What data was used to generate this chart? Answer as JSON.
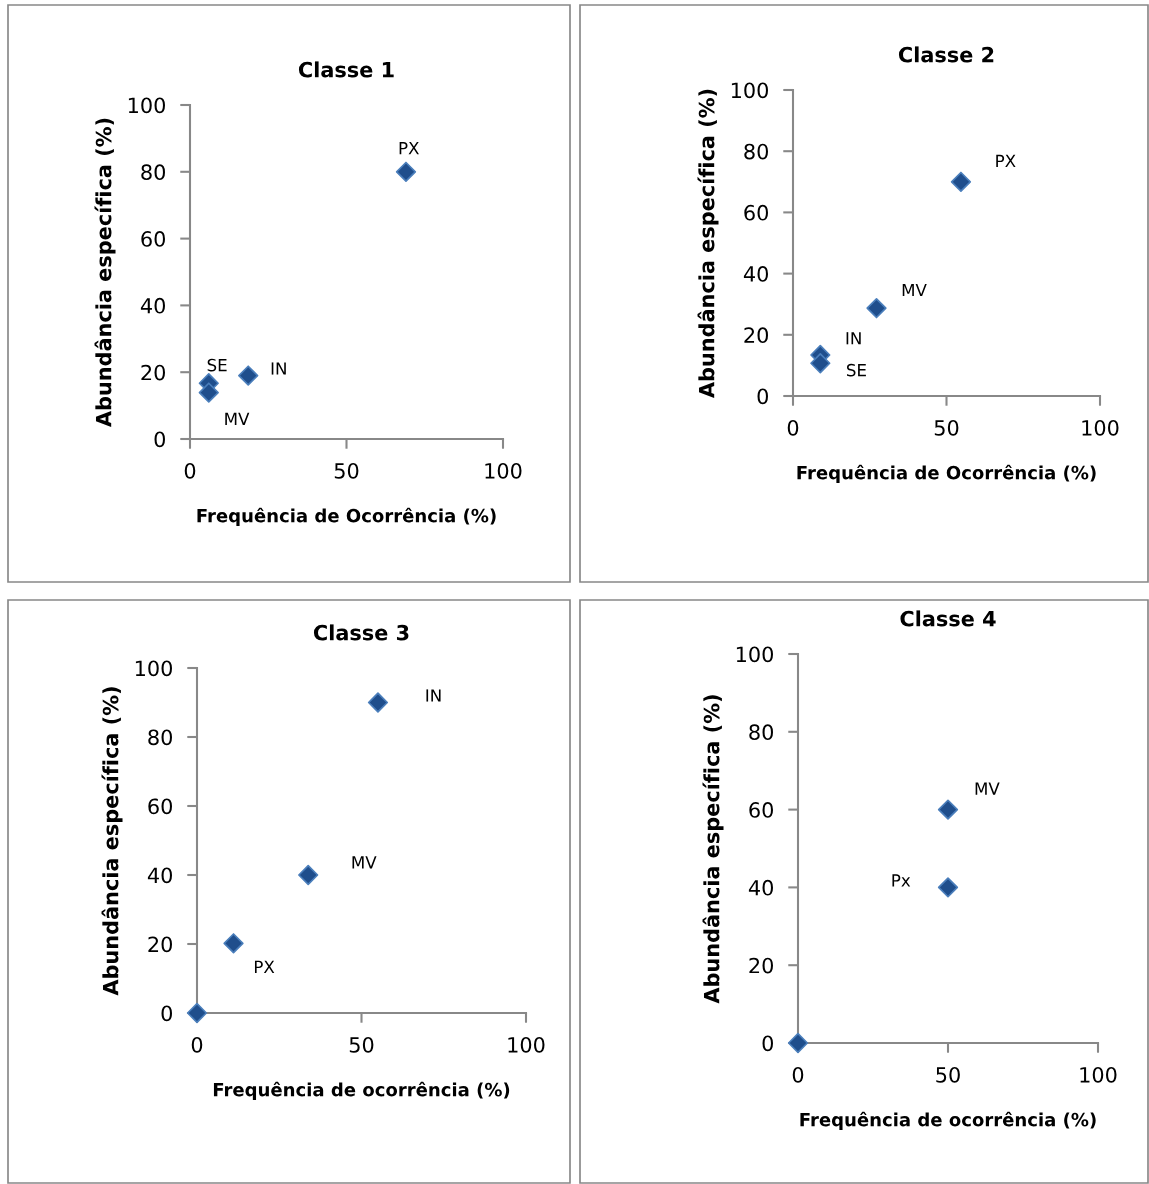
{
  "chart_data": [
    {
      "type": "scatter",
      "title": "Classe 1",
      "xlabel": "Frequência de Ocorrência (%)",
      "ylabel": "Abundância específica (%)",
      "xlim": [
        0,
        100
      ],
      "ylim": [
        0,
        100
      ],
      "xticks": [
        0,
        50,
        100
      ],
      "yticks": [
        0,
        20,
        40,
        60,
        80,
        100
      ],
      "marker": "diamond",
      "grid": false,
      "legend": false,
      "series": [
        {
          "color": "#1f4e8c",
          "x": [
            69,
            6,
            6,
            18.6
          ],
          "values": [
            80,
            16.7,
            13.9,
            19
          ]
        }
      ],
      "annotations": [
        {
          "text": "PX",
          "x": 69,
          "y": 80
        },
        {
          "text": "SE",
          "x": 6,
          "y": 16.7
        },
        {
          "text": "MV",
          "x": 6,
          "y": 13.9
        },
        {
          "text": "IN",
          "x": 18.6,
          "y": 19
        }
      ]
    },
    {
      "type": "scatter",
      "title": "Classe 2",
      "xlabel": "Frequência de Ocorrência (%)",
      "ylabel": "Abundância específica (%)",
      "xlim": [
        0,
        100
      ],
      "ylim": [
        0,
        100
      ],
      "xticks": [
        0,
        50,
        100
      ],
      "yticks": [
        0,
        20,
        40,
        60,
        80,
        100
      ],
      "marker": "diamond",
      "grid": false,
      "legend": false,
      "series": [
        {
          "color": "#1f4e8c",
          "x": [
            54.7,
            27.2,
            8.9,
            8.9
          ],
          "values": [
            70,
            28.7,
            13.4,
            10.7
          ]
        }
      ],
      "annotations": [
        {
          "text": "PX",
          "x": 54.7,
          "y": 70
        },
        {
          "text": "MV",
          "x": 27.2,
          "y": 28.7
        },
        {
          "text": "IN",
          "x": 8.9,
          "y": 13.4
        },
        {
          "text": "SE",
          "x": 8.9,
          "y": 10.7
        }
      ]
    },
    {
      "type": "scatter",
      "title": "Classe 3",
      "xlabel": "Frequência de ocorrência (%)",
      "ylabel": "Abundância específica (%)",
      "xlim": [
        0,
        100
      ],
      "ylim": [
        0,
        100
      ],
      "xticks": [
        0,
        50,
        100
      ],
      "yticks": [
        0,
        20,
        40,
        60,
        80,
        100
      ],
      "marker": "diamond",
      "grid": false,
      "legend": false,
      "series": [
        {
          "color": "#1f4e8c",
          "x": [
            55,
            33.8,
            11.1,
            0
          ],
          "values": [
            90,
            40,
            20.2,
            0
          ]
        }
      ],
      "annotations": [
        {
          "text": "IN",
          "x": 55,
          "y": 90
        },
        {
          "text": "MV",
          "x": 33.8,
          "y": 40
        },
        {
          "text": "PX",
          "x": 11.1,
          "y": 20.2
        }
      ]
    },
    {
      "type": "scatter",
      "title": "Classe 4",
      "xlabel": "Frequência de ocorrência (%)",
      "ylabel": "Abundância específica (%)",
      "xlim": [
        0,
        100
      ],
      "ylim": [
        0,
        100
      ],
      "xticks": [
        0,
        50,
        100
      ],
      "yticks": [
        0,
        20,
        40,
        60,
        80,
        100
      ],
      "marker": "diamond",
      "grid": false,
      "legend": false,
      "series": [
        {
          "color": "#1f4e8c",
          "x": [
            50,
            50,
            0
          ],
          "values": [
            60,
            40,
            0
          ]
        }
      ],
      "annotations": [
        {
          "text": "MV",
          "x": 50,
          "y": 60
        },
        {
          "text": "Px",
          "x": 50,
          "y": 40
        }
      ]
    }
  ]
}
